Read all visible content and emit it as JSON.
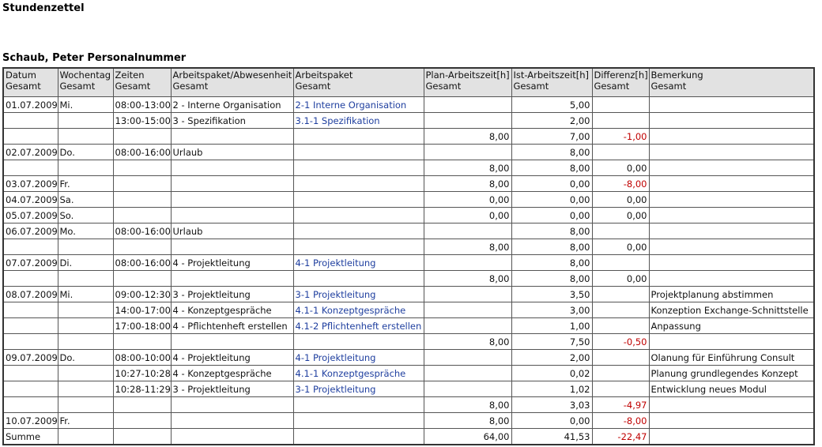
{
  "title": "Stundenzettel",
  "person": "Schaub, Peter Personalnummer",
  "colors": {
    "link": "#1f3f9f",
    "negative": "#c00000",
    "header_bg": "#e2e2e2"
  },
  "columns": [
    {
      "label": "Datum",
      "sub": "Gesamt"
    },
    {
      "label": "Wochentag",
      "sub": "Gesamt"
    },
    {
      "label": "Zeiten",
      "sub": "Gesamt"
    },
    {
      "label": "Arbeitspaket/Abwesenheit",
      "sub": "Gesamt"
    },
    {
      "label": "Arbeitspaket",
      "sub": "Gesamt"
    },
    {
      "label": "Plan-Arbeitszeit[h]",
      "sub": "Gesamt"
    },
    {
      "label": "Ist-Arbeitszeit[h]",
      "sub": "Gesamt"
    },
    {
      "label": "Differenz[h]",
      "sub": "Gesamt"
    },
    {
      "label": "Bemerkung",
      "sub": "Gesamt"
    }
  ],
  "rows": [
    [
      "01.07.2009",
      "Mi.",
      "08:00-13:00",
      "2 - Interne Organisation",
      "2-1 Interne Organisation",
      "",
      "5,00",
      "",
      ""
    ],
    [
      "",
      "",
      "13:00-15:00",
      "3 - Spezifikation",
      "3.1-1 Spezifikation",
      "",
      "2,00",
      "",
      ""
    ],
    [
      "",
      "",
      "",
      "",
      "",
      "8,00",
      "7,00",
      "-1,00",
      ""
    ],
    [
      "02.07.2009",
      "Do.",
      "08:00-16:00",
      "Urlaub",
      "",
      "",
      "8,00",
      "",
      ""
    ],
    [
      "",
      "",
      "",
      "",
      "",
      "8,00",
      "8,00",
      "0,00",
      ""
    ],
    [
      "03.07.2009",
      "Fr.",
      "",
      "",
      "",
      "8,00",
      "0,00",
      "-8,00",
      ""
    ],
    [
      "04.07.2009",
      "Sa.",
      "",
      "",
      "",
      "0,00",
      "0,00",
      "0,00",
      ""
    ],
    [
      "05.07.2009",
      "So.",
      "",
      "",
      "",
      "0,00",
      "0,00",
      "0,00",
      ""
    ],
    [
      "06.07.2009",
      "Mo.",
      "08:00-16:00",
      "Urlaub",
      "",
      "",
      "8,00",
      "",
      ""
    ],
    [
      "",
      "",
      "",
      "",
      "",
      "8,00",
      "8,00",
      "0,00",
      ""
    ],
    [
      "07.07.2009",
      "Di.",
      "08:00-16:00",
      "4 - Projektleitung",
      "4-1 Projektleitung",
      "",
      "8,00",
      "",
      ""
    ],
    [
      "",
      "",
      "",
      "",
      "",
      "8,00",
      "8,00",
      "0,00",
      ""
    ],
    [
      "08.07.2009",
      "Mi.",
      "09:00-12:30",
      "3 - Projektleitung",
      "3-1 Projektleitung",
      "",
      "3,50",
      "",
      "Projektplanung abstimmen"
    ],
    [
      "",
      "",
      "14:00-17:00",
      "4 - Konzeptgespräche",
      "4.1-1 Konzeptgespräche",
      "",
      "3,00",
      "",
      "Konzeption Exchange-Schnittstelle"
    ],
    [
      "",
      "",
      "17:00-18:00",
      "4 - Pflichtenheft erstellen",
      "4.1-2 Pflichtenheft erstellen",
      "",
      "1,00",
      "",
      "Anpassung"
    ],
    [
      "",
      "",
      "",
      "",
      "",
      "8,00",
      "7,50",
      "-0,50",
      ""
    ],
    [
      "09.07.2009",
      "Do.",
      "08:00-10:00",
      "4 - Projektleitung",
      "4-1 Projektleitung",
      "",
      "2,00",
      "",
      "Olanung für Einführung Consult"
    ],
    [
      "",
      "",
      "10:27-10:28",
      "4 - Konzeptgespräche",
      "4.1-1 Konzeptgespräche",
      "",
      "0,02",
      "",
      "Planung grundlegendes Konzept"
    ],
    [
      "",
      "",
      "10:28-11:29",
      "3 - Projektleitung",
      "3-1 Projektleitung",
      "",
      "1,02",
      "",
      "Entwicklung neues Modul"
    ],
    [
      "",
      "",
      "",
      "",
      "",
      "8,00",
      "3,03",
      "-4,97",
      ""
    ],
    [
      "10.07.2009",
      "Fr.",
      "",
      "",
      "",
      "8,00",
      "0,00",
      "-8,00",
      ""
    ],
    [
      "Summe",
      "",
      "",
      "",
      "",
      "64,00",
      "41,53",
      "-22,47",
      ""
    ]
  ]
}
